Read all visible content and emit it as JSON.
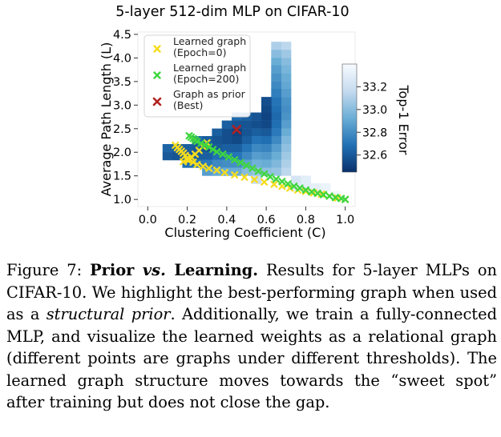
{
  "chart_data": {
    "type": "heatmap",
    "title": "5-layer 512-dim MLP on CIFAR-10",
    "xlabel": "Clustering Coefficient (C)",
    "ylabel": "Average Path Length (L)",
    "xlim": [
      -0.05,
      1.05
    ],
    "ylim": [
      0.85,
      4.55
    ],
    "x_ticks": [
      "0.0",
      "0.2",
      "0.4",
      "0.6",
      "0.8",
      "1.0"
    ],
    "x_tick_values": [
      0.0,
      0.2,
      0.4,
      0.6,
      0.8,
      1.0
    ],
    "y_ticks": [
      "1.0",
      "1.5",
      "2.0",
      "2.5",
      "3.0",
      "3.5",
      "4.0",
      "4.5"
    ],
    "y_tick_values": [
      1.0,
      1.5,
      2.0,
      2.5,
      3.0,
      3.5,
      4.0,
      4.5
    ],
    "grid": false,
    "colorbar": {
      "label": "Top-1 Error",
      "ticks": [
        "32.6",
        "32.8",
        "33.0",
        "33.2"
      ],
      "tick_values": [
        32.6,
        32.8,
        33.0,
        33.2
      ],
      "range": [
        32.45,
        33.4
      ],
      "colors": [
        "#08306b",
        "#f7fbff"
      ]
    },
    "cell_width": 0.05,
    "cell_height": 0.1667,
    "cells": [
      [
        0.7,
        4.26,
        33.14
      ],
      [
        0.7,
        4.09,
        33.06
      ],
      [
        0.7,
        3.92,
        33.0
      ],
      [
        0.7,
        3.76,
        32.96
      ],
      [
        0.7,
        3.59,
        32.92
      ],
      [
        0.7,
        3.42,
        32.9
      ],
      [
        0.7,
        3.26,
        32.86
      ],
      [
        0.7,
        3.09,
        32.82
      ],
      [
        0.7,
        2.92,
        32.8
      ],
      [
        0.7,
        2.76,
        32.82
      ],
      [
        0.7,
        2.59,
        32.86
      ],
      [
        0.7,
        2.42,
        32.92
      ],
      [
        0.7,
        2.26,
        32.98
      ],
      [
        0.7,
        2.09,
        33.02
      ],
      [
        0.7,
        1.92,
        33.06
      ],
      [
        0.7,
        1.76,
        33.1
      ],
      [
        0.7,
        1.59,
        33.14
      ],
      [
        0.65,
        4.26,
        33.1
      ],
      [
        0.65,
        4.09,
        33.0
      ],
      [
        0.65,
        3.92,
        32.92
      ],
      [
        0.65,
        3.76,
        32.86
      ],
      [
        0.65,
        3.59,
        32.82
      ],
      [
        0.65,
        3.42,
        32.78
      ],
      [
        0.65,
        3.26,
        32.74
      ],
      [
        0.65,
        3.09,
        32.7
      ],
      [
        0.65,
        2.92,
        32.68
      ],
      [
        0.65,
        2.76,
        32.66
      ],
      [
        0.65,
        2.59,
        32.68
      ],
      [
        0.65,
        2.42,
        32.72
      ],
      [
        0.65,
        2.26,
        32.78
      ],
      [
        0.65,
        2.09,
        32.86
      ],
      [
        0.65,
        1.92,
        32.92
      ],
      [
        0.65,
        1.76,
        32.98
      ],
      [
        0.65,
        1.59,
        33.04
      ],
      [
        0.6,
        3.09,
        32.56
      ],
      [
        0.6,
        2.92,
        32.54
      ],
      [
        0.6,
        2.76,
        32.52
      ],
      [
        0.6,
        2.59,
        32.54
      ],
      [
        0.6,
        2.42,
        32.6
      ],
      [
        0.6,
        2.26,
        32.68
      ],
      [
        0.6,
        2.09,
        32.76
      ],
      [
        0.6,
        1.92,
        32.84
      ],
      [
        0.6,
        1.76,
        32.92
      ],
      [
        0.6,
        1.59,
        33.02
      ],
      [
        0.55,
        2.76,
        32.58
      ],
      [
        0.55,
        2.59,
        32.56
      ],
      [
        0.55,
        2.42,
        32.62
      ],
      [
        0.55,
        2.26,
        32.7
      ],
      [
        0.55,
        2.09,
        32.78
      ],
      [
        0.55,
        1.92,
        32.86
      ],
      [
        0.55,
        1.76,
        32.94
      ],
      [
        0.55,
        1.59,
        33.04
      ],
      [
        0.55,
        1.42,
        33.18
      ],
      [
        0.5,
        2.76,
        32.62
      ],
      [
        0.5,
        2.59,
        32.58
      ],
      [
        0.5,
        2.42,
        32.58
      ],
      [
        0.5,
        2.26,
        32.62
      ],
      [
        0.5,
        2.09,
        32.7
      ],
      [
        0.5,
        1.92,
        32.78
      ],
      [
        0.5,
        1.76,
        32.88
      ],
      [
        0.5,
        1.59,
        33.0
      ],
      [
        0.45,
        2.76,
        32.66
      ],
      [
        0.45,
        2.59,
        32.58
      ],
      [
        0.45,
        2.42,
        32.52
      ],
      [
        0.45,
        2.26,
        32.54
      ],
      [
        0.45,
        2.09,
        32.62
      ],
      [
        0.45,
        1.92,
        32.7
      ],
      [
        0.45,
        1.76,
        32.8
      ],
      [
        0.45,
        1.59,
        32.92
      ],
      [
        0.4,
        2.59,
        32.62
      ],
      [
        0.4,
        2.42,
        32.56
      ],
      [
        0.4,
        2.26,
        32.56
      ],
      [
        0.4,
        2.09,
        32.62
      ],
      [
        0.4,
        1.92,
        32.7
      ],
      [
        0.4,
        1.76,
        32.8
      ],
      [
        0.4,
        1.59,
        32.92
      ],
      [
        0.35,
        2.42,
        32.62
      ],
      [
        0.35,
        2.26,
        32.58
      ],
      [
        0.35,
        2.09,
        32.6
      ],
      [
        0.35,
        1.92,
        32.68
      ],
      [
        0.35,
        1.76,
        32.78
      ],
      [
        0.35,
        1.59,
        32.9
      ],
      [
        0.3,
        2.26,
        32.62
      ],
      [
        0.3,
        2.09,
        32.58
      ],
      [
        0.3,
        1.92,
        32.62
      ],
      [
        0.3,
        1.76,
        32.72
      ],
      [
        0.3,
        1.59,
        32.86
      ],
      [
        0.25,
        2.26,
        32.66
      ],
      [
        0.25,
        2.09,
        32.6
      ],
      [
        0.25,
        1.92,
        32.62
      ],
      [
        0.25,
        1.76,
        32.7
      ],
      [
        0.2,
        2.09,
        32.62
      ],
      [
        0.2,
        1.92,
        32.6
      ],
      [
        0.2,
        1.76,
        32.68
      ],
      [
        0.15,
        2.09,
        32.62
      ],
      [
        0.15,
        1.92,
        32.58
      ],
      [
        0.1,
        2.09,
        32.64
      ],
      [
        0.1,
        1.92,
        32.6
      ],
      [
        0.75,
        1.42,
        33.24
      ],
      [
        0.8,
        1.42,
        33.3
      ],
      [
        0.85,
        1.26,
        33.32
      ],
      [
        0.9,
        1.26,
        33.34
      ],
      [
        0.95,
        1.09,
        33.36
      ],
      [
        0.75,
        1.26,
        33.28
      ],
      [
        0.8,
        1.26,
        33.3
      ]
    ],
    "series": [
      {
        "name": "Learned graph\n(Epoch=0)",
        "color": "#f5dc1e",
        "marker": "x",
        "x": [
          0.14,
          0.15,
          0.16,
          0.17,
          0.18,
          0.19,
          0.2,
          0.21,
          0.23,
          0.25,
          0.28,
          0.31,
          0.35,
          0.39,
          0.44,
          0.49,
          0.54,
          0.59,
          0.64,
          0.68,
          0.72,
          0.76,
          0.8,
          0.84,
          0.88,
          0.92,
          0.96,
          1.0,
          0.18,
          0.2,
          0.22,
          0.24,
          0.26,
          0.28,
          0.3
        ],
        "y": [
          2.15,
          2.1,
          2.06,
          2.02,
          1.98,
          1.93,
          1.88,
          1.84,
          1.79,
          1.74,
          1.7,
          1.66,
          1.62,
          1.57,
          1.52,
          1.47,
          1.42,
          1.37,
          1.32,
          1.28,
          1.24,
          1.2,
          1.17,
          1.14,
          1.11,
          1.07,
          1.03,
          1.0,
          1.8,
          1.84,
          1.9,
          1.96,
          2.04,
          2.12,
          2.2
        ]
      },
      {
        "name": "Learned graph\n(Epoch=200)",
        "color": "#3fd63f",
        "marker": "x",
        "x": [
          0.21,
          0.22,
          0.23,
          0.24,
          0.25,
          0.27,
          0.29,
          0.31,
          0.33,
          0.35,
          0.38,
          0.41,
          0.44,
          0.47,
          0.5,
          0.53,
          0.56,
          0.59,
          0.62,
          0.65,
          0.68,
          0.71,
          0.74,
          0.77,
          0.8,
          0.83,
          0.86,
          0.89,
          0.92,
          0.95,
          0.98,
          1.0
        ],
        "y": [
          2.35,
          2.32,
          2.29,
          2.26,
          2.23,
          2.19,
          2.15,
          2.11,
          2.06,
          2.01,
          1.96,
          1.9,
          1.84,
          1.78,
          1.72,
          1.66,
          1.6,
          1.54,
          1.48,
          1.43,
          1.38,
          1.33,
          1.28,
          1.24,
          1.2,
          1.16,
          1.13,
          1.1,
          1.07,
          1.04,
          1.02,
          1.0
        ]
      },
      {
        "name": "Graph as prior\n(Best)",
        "color": "#b22222",
        "marker": "x",
        "x": [
          0.45
        ],
        "y": [
          2.48
        ]
      }
    ],
    "legend_position": "top-left"
  },
  "caption": {
    "label": "Figure 7: ",
    "bold_1": "Prior ",
    "italic_1": "vs.",
    "bold_2": " Learning.",
    "text_1": " Results for 5-layer MLPs on CIFAR-10. We highlight the best-performing graph when used as a ",
    "italic_2": "structural prior",
    "text_2": ". Additionally, we train a fully-connected MLP, and visualize the learned weights as a relational graph (different points are graphs under different thresholds). The learned graph structure moves towards the “sweet spot” after training but does not close the gap."
  }
}
